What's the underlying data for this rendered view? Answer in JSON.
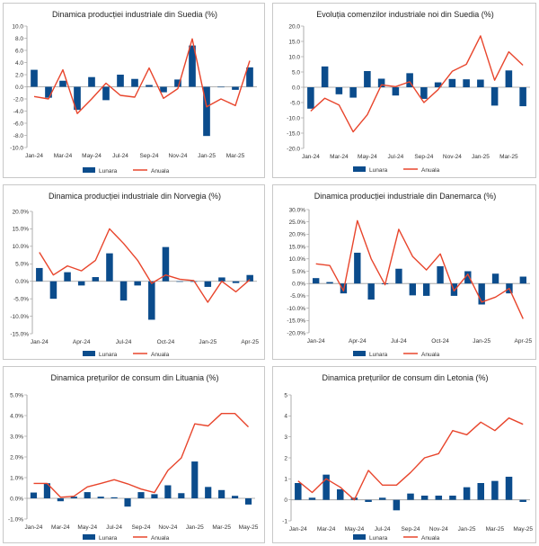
{
  "colors": {
    "bar": "#0b4c8c",
    "line": "#e8452c",
    "axis": "#999999"
  },
  "chart_data": [
    {
      "type": "bar",
      "title": "Dinamica producției industriale din Suedia (%)",
      "categories": [
        "Jan-24",
        "Feb-24",
        "Mar-24",
        "Apr-24",
        "May-24",
        "Jun-24",
        "Jul-24",
        "Aug-24",
        "Sep-24",
        "Oct-24",
        "Nov-24",
        "Dec-24",
        "Jan-25",
        "Feb-25",
        "Mar-25",
        "Apr-25"
      ],
      "x_tick_labels": [
        "Jan-24",
        "Mar-24",
        "May-24",
        "Jul-24",
        "Sep-24",
        "Nov-24",
        "Jan-25",
        "Mar-25"
      ],
      "y_tick_labels": [
        "-10.0",
        "-8.0",
        "-6.0",
        "-4.0",
        "-2.0",
        "0.0",
        "2.0",
        "4.0",
        "6.0",
        "8.0",
        "10.0"
      ],
      "ylim": [
        -10,
        10
      ],
      "series": [
        {
          "name": "Lunara",
          "kind": "bar",
          "values": [
            2.8,
            -1.8,
            1.0,
            -3.8,
            1.6,
            -2.2,
            2.0,
            1.3,
            0.3,
            -0.9,
            1.2,
            6.8,
            -8.1,
            0.0,
            -0.5,
            3.2
          ]
        },
        {
          "name": "Anuala",
          "kind": "line",
          "values": [
            -1.6,
            -2.0,
            2.8,
            -4.4,
            -2.0,
            0.6,
            -1.4,
            -1.7,
            3.1,
            -1.9,
            -0.3,
            7.9,
            -3.3,
            -2.0,
            -3.1,
            4.3
          ]
        }
      ]
    },
    {
      "type": "bar",
      "title": "Evoluția comenzilor industriale noi din Suedia (%)",
      "categories": [
        "Jan-24",
        "Feb-24",
        "Mar-24",
        "Apr-24",
        "May-24",
        "Jun-24",
        "Jul-24",
        "Aug-24",
        "Sep-24",
        "Oct-24",
        "Nov-24",
        "Dec-24",
        "Jan-25",
        "Feb-25",
        "Mar-25",
        "Apr-25"
      ],
      "x_tick_labels": [
        "Jan-24",
        "Mar-24",
        "May-24",
        "Jul-24",
        "Sep-24",
        "Nov-24",
        "Jan-25",
        "Mar-25"
      ],
      "y_tick_labels": [
        "-20.0",
        "-15.0",
        "-10.0",
        "-5.0",
        "0.0",
        "5.0",
        "10.0",
        "15.0",
        "20.0"
      ],
      "ylim": [
        -20,
        20
      ],
      "series": [
        {
          "name": "Lunara",
          "kind": "bar",
          "values": [
            -7.0,
            6.8,
            -2.3,
            -3.4,
            5.3,
            2.8,
            -2.7,
            4.6,
            -3.8,
            1.6,
            2.7,
            2.6,
            2.5,
            -6.0,
            5.5,
            -6.2
          ]
        },
        {
          "name": "Anuala",
          "kind": "line",
          "values": [
            -7.8,
            -3.6,
            -5.8,
            -14.6,
            -9.0,
            0.8,
            0.2,
            1.8,
            -5.0,
            -0.8,
            5.2,
            7.5,
            16.8,
            2.3,
            11.6,
            7.2
          ]
        }
      ]
    },
    {
      "type": "bar",
      "title": "Dinamica producției industriale din Norvegia (%)",
      "categories": [
        "Jan-24",
        "Feb-24",
        "Mar-24",
        "Apr-24",
        "May-24",
        "Jun-24",
        "Jul-24",
        "Aug-24",
        "Sep-24",
        "Oct-24",
        "Nov-24",
        "Dec-24",
        "Jan-25",
        "Feb-25",
        "Mar-25",
        "Apr-25"
      ],
      "x_tick_labels": [
        "Jan-24",
        "Apr-24",
        "Jul-24",
        "Oct-24",
        "Jan-25",
        "Apr-25"
      ],
      "y_tick_labels": [
        "-15.0%",
        "-10.0%",
        "-5.0%",
        "0.0%",
        "5.0%",
        "10.0%",
        "15.0%",
        "20.0%"
      ],
      "ylim": [
        -15,
        20
      ],
      "series": [
        {
          "name": "Lunara",
          "kind": "bar",
          "values": [
            3.8,
            -5.0,
            2.6,
            -1.2,
            1.2,
            8.0,
            -5.5,
            -1.2,
            -11.0,
            9.8,
            0.0,
            0.0,
            -1.6,
            1.1,
            -0.5,
            1.8
          ]
        },
        {
          "name": "Anuala",
          "kind": "line",
          "values": [
            8.3,
            1.8,
            4.4,
            3.0,
            6.0,
            15.0,
            10.8,
            6.0,
            -0.6,
            1.8,
            0.6,
            0.2,
            -6.0,
            0.0,
            -3.0,
            0.5
          ]
        }
      ]
    },
    {
      "type": "bar",
      "title": "Dinamica producției industriale din Danemarca (%)",
      "categories": [
        "Jan-24",
        "Feb-24",
        "Mar-24",
        "Apr-24",
        "May-24",
        "Jun-24",
        "Jul-24",
        "Aug-24",
        "Sep-24",
        "Oct-24",
        "Nov-24",
        "Dec-24",
        "Jan-25",
        "Feb-25",
        "Mar-25",
        "Apr-25"
      ],
      "x_tick_labels": [
        "Jan-24",
        "Apr-24",
        "Jul-24",
        "Oct-24",
        "Jan-25",
        "Apr-25"
      ],
      "y_tick_labels": [
        "-20.0%",
        "-15.0%",
        "-10.0%",
        "-5.0%",
        "0.0%",
        "5.0%",
        "10.0%",
        "15.0%",
        "20.0%",
        "25.0%",
        "30.0%"
      ],
      "ylim": [
        -20,
        30
      ],
      "series": [
        {
          "name": "Lunara",
          "kind": "bar",
          "values": [
            2.2,
            0.6,
            -4.0,
            12.5,
            -6.5,
            -0.3,
            6.0,
            -4.8,
            -5.0,
            7.0,
            -5.0,
            5.0,
            -8.5,
            4.0,
            -4.0,
            2.8
          ]
        },
        {
          "name": "Anuala",
          "kind": "line",
          "values": [
            8.0,
            7.3,
            -3.0,
            25.5,
            10.0,
            -0.5,
            22.0,
            11.0,
            5.5,
            12.0,
            -3.0,
            3.8,
            -7.5,
            -5.5,
            -2.0,
            -14.3
          ]
        }
      ]
    },
    {
      "type": "bar",
      "title": "Dinamica prețurilor de consum din Lituania (%)",
      "categories": [
        "Jan-24",
        "Feb-24",
        "Mar-24",
        "Apr-24",
        "May-24",
        "Jun-24",
        "Jul-24",
        "Aug-24",
        "Sep-24",
        "Oct-24",
        "Nov-24",
        "Dec-24",
        "Jan-25",
        "Feb-25",
        "Mar-25",
        "Apr-25",
        "May-25"
      ],
      "x_tick_labels": [
        "Jan-24",
        "Mar-24",
        "May-24",
        "Jul-24",
        "Sep-24",
        "Nov-24",
        "Jan-25",
        "Mar-25",
        "May-25"
      ],
      "y_tick_labels": [
        "-1.0%",
        "0.0%",
        "1.0%",
        "2.0%",
        "3.0%",
        "4.0%",
        "5.0%"
      ],
      "ylim": [
        -1,
        5
      ],
      "series": [
        {
          "name": "Lunara",
          "kind": "bar",
          "values": [
            0.28,
            0.73,
            -0.14,
            0.08,
            0.3,
            0.08,
            0.05,
            -0.4,
            0.3,
            0.2,
            0.63,
            0.25,
            1.78,
            0.55,
            0.4,
            0.12,
            -0.3
          ]
        },
        {
          "name": "Anuala",
          "kind": "line",
          "values": [
            0.72,
            0.72,
            0.05,
            0.1,
            0.55,
            0.72,
            0.9,
            0.7,
            0.45,
            0.28,
            1.35,
            1.95,
            3.6,
            3.5,
            4.1,
            4.1,
            3.45
          ]
        }
      ]
    },
    {
      "type": "bar",
      "title": "Dinamica prețurilor de consum din Letonia (%)",
      "categories": [
        "Jan-24",
        "Feb-24",
        "Mar-24",
        "Apr-24",
        "May-24",
        "Jun-24",
        "Jul-24",
        "Aug-24",
        "Sep-24",
        "Oct-24",
        "Nov-24",
        "Dec-24",
        "Jan-25",
        "Feb-25",
        "Mar-25",
        "Apr-25",
        "May-25"
      ],
      "x_tick_labels": [
        "Jan-24",
        "Mar-24",
        "May-24",
        "Jul-24",
        "Sep-24",
        "Nov-24",
        "Jan-25",
        "Mar-25",
        "May-25"
      ],
      "y_tick_labels": [
        "-1",
        "0",
        "1",
        "2",
        "3",
        "4",
        "5"
      ],
      "ylim": [
        -1,
        5
      ],
      "series": [
        {
          "name": "Lunara",
          "kind": "bar",
          "values": [
            0.8,
            0.1,
            1.2,
            0.5,
            0.1,
            -0.1,
            0.1,
            -0.5,
            0.3,
            0.2,
            0.2,
            0.2,
            0.6,
            0.8,
            0.9,
            1.1,
            -0.1
          ]
        },
        {
          "name": "Anuala",
          "kind": "line",
          "values": [
            0.9,
            0.35,
            1.0,
            0.6,
            0.0,
            1.4,
            0.7,
            0.7,
            1.3,
            2.0,
            2.2,
            3.3,
            3.1,
            3.7,
            3.3,
            3.9,
            3.6
          ]
        }
      ]
    }
  ]
}
